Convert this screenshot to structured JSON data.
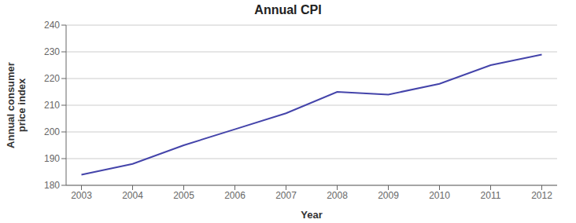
{
  "chart_data": {
    "type": "line",
    "title": "Annual CPI",
    "xlabel": "Year",
    "ylabel": "Annual consumer\nprice index",
    "x": [
      2003,
      2004,
      2005,
      2006,
      2007,
      2008,
      2009,
      2010,
      2011,
      2012
    ],
    "values": [
      184,
      188,
      195,
      201,
      207,
      215,
      214,
      218,
      225,
      229
    ],
    "color": "#4444aa",
    "xlim": [
      2002.7,
      2012.3
    ],
    "ylim": [
      180,
      240
    ],
    "xticks": [
      2003,
      2004,
      2005,
      2006,
      2007,
      2008,
      2009,
      2010,
      2011,
      2012
    ],
    "yticks": [
      180,
      190,
      200,
      210,
      220,
      230,
      240
    ],
    "grid": true
  }
}
